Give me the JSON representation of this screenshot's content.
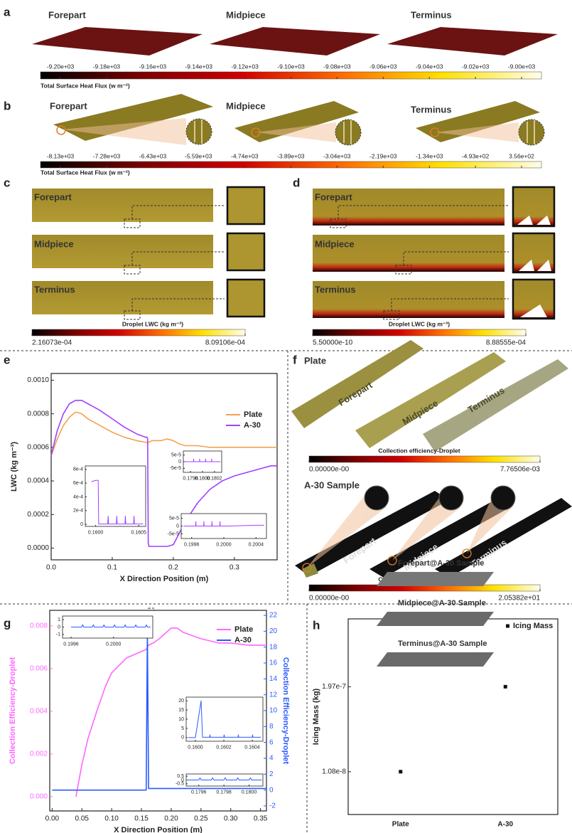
{
  "panels": {
    "a": {
      "label": "a",
      "names": [
        "Forepart",
        "Midpiece",
        "Terminus"
      ],
      "colorbar": {
        "title": "Total Surface Heat Flux (w m⁻²)",
        "lim": [
          -9200,
          -9000
        ],
        "ticks": [
          {
            "value": -9200,
            "label": "-9.20e+03"
          },
          {
            "value": -9180,
            "label": "-9.18e+03"
          },
          {
            "value": -9160,
            "label": "-9.16e+03"
          },
          {
            "value": -9140,
            "label": "-9.14e+03"
          },
          {
            "value": -9120,
            "label": "-9.12e+03"
          },
          {
            "value": -9100,
            "label": "-9.10e+03"
          },
          {
            "value": -9080,
            "label": "-9.08e+03"
          },
          {
            "value": -9060,
            "label": "-9.06e+03"
          },
          {
            "value": -9040,
            "label": "-9.04e+03"
          },
          {
            "value": -9020,
            "label": "-9.02e+03"
          },
          {
            "value": -9000,
            "label": "-9.00e+03"
          }
        ]
      }
    },
    "b": {
      "label": "b",
      "names": [
        "Forepart",
        "Midpiece",
        "Terminus"
      ],
      "colorbar": {
        "title": "Total Surface Heat Flux (w m⁻²)",
        "lim": [
          -8130,
          356
        ],
        "ticks": [
          {
            "value": -8130,
            "label": "-8.13e+03"
          },
          {
            "value": -7280,
            "label": "-7.28e+03"
          },
          {
            "value": -6430,
            "label": "-6.43e+03"
          },
          {
            "value": -5590,
            "label": "-5.59e+03"
          },
          {
            "value": -4740,
            "label": "-4.74e+03"
          },
          {
            "value": -3890,
            "label": "-3.89e+03"
          },
          {
            "value": -3040,
            "label": "-3.04e+03"
          },
          {
            "value": -2190,
            "label": "-2.19e+03"
          },
          {
            "value": -1340,
            "label": "-1.34e+03"
          },
          {
            "value": -493,
            "label": "-4.93e+02"
          },
          {
            "value": 356,
            "label": "3.56e+02"
          }
        ]
      }
    },
    "c": {
      "label": "c",
      "names": [
        "Forepart",
        "Midpiece",
        "Terminus"
      ],
      "colorbar": {
        "title": "Droplet LWC (kg m⁻³)",
        "lim": [
          0.000216073,
          0.000809106
        ],
        "ticks": [
          {
            "value": 0.000216073,
            "label": "2.16073e-04"
          },
          {
            "value": 0.000809106,
            "label": "8.09106e-04"
          }
        ]
      }
    },
    "d": {
      "label": "d",
      "names": [
        "Forepart",
        "Midpiece",
        "Terminus"
      ],
      "colorbar": {
        "title": "Droplet LWC (kg m⁻³)",
        "lim": [
          5.5e-10,
          0.000888555
        ],
        "ticks": [
          {
            "value": 5.5e-10,
            "label": "5.50000e-10"
          },
          {
            "value": 0.000888555,
            "label": "8.88555e-04"
          }
        ]
      }
    },
    "e": {
      "label": "e"
    },
    "f": {
      "label": "f",
      "plate_title": "Plate",
      "sample_title": "A-30 Sample",
      "plate_names": [
        "Forepart",
        "Midpiece",
        "Terminus"
      ],
      "sample_names": [
        "Forepart",
        "Midpiece",
        "Terminus"
      ],
      "plate_colorbar": {
        "title": "Collection efficiency-Droplet",
        "lim": [
          0,
          0.00776506
        ],
        "ticks": [
          {
            "value": 0,
            "label": "0.00000e-00"
          },
          {
            "value": 0.00776506,
            "label": "7.76506e-03"
          }
        ]
      },
      "sample_colorbar": {
        "title": "Collection efficiency-Droplet",
        "lim": [
          0,
          20.5382
        ],
        "ticks": [
          {
            "value": 0,
            "label": "0.00000e-00"
          },
          {
            "value": 20.5382,
            "label": "2.05382e+01"
          }
        ]
      }
    },
    "g": {
      "label": "g"
    },
    "h": {
      "label": "h"
    }
  },
  "chart_data": [
    {
      "type": "line",
      "xlabel": "X Direction Position (m)",
      "ylabel": "LWC (kg m⁻³)",
      "xlim": [
        0,
        0.37
      ],
      "xticks": [
        {
          "value": 0,
          "label": "0.0"
        },
        0.1,
        0.2,
        0.3
      ],
      "ylim": [
        -7e-05,
        0.00104
      ],
      "yticks": [
        {
          "value": 0,
          "label": "0.0000"
        },
        {
          "value": 0.0002,
          "label": "0.0002"
        },
        {
          "value": 0.0004,
          "label": "0.0004"
        },
        {
          "value": 0.0006,
          "label": "0.0006"
        },
        {
          "value": 0.0008,
          "label": "0.0008"
        },
        {
          "value": 0.001,
          "label": "0.0010"
        }
      ],
      "x": [
        0,
        0.01,
        0.02,
        0.03,
        0.04,
        0.05,
        0.06,
        0.08,
        0.1,
        0.12,
        0.14,
        0.155,
        0.157,
        0.158,
        0.159,
        0.16,
        0.165,
        0.17,
        0.18,
        0.19,
        0.2,
        0.21,
        0.22,
        0.24,
        0.26,
        0.28,
        0.3,
        0.32,
        0.34,
        0.36,
        0.37
      ],
      "series": [
        {
          "name": "Plate",
          "color": "#f5a050",
          "values": [
            0.00055,
            0.00065,
            0.00073,
            0.00078,
            0.00081,
            0.0008,
            0.00077,
            0.00073,
            0.00069,
            0.00066,
            0.00064,
            0.00063,
            0.00063,
            0.00063,
            0.00063,
            0.00063,
            0.00064,
            0.00064,
            0.00064,
            0.00065,
            0.00064,
            0.00062,
            0.00061,
            0.00061,
            0.0006,
            0.0006,
            0.0006,
            0.0006,
            0.0006,
            0.0006,
            0.0006
          ]
        },
        {
          "name": "A-30",
          "color": "#a040ff",
          "values": [
            0.00055,
            0.0007,
            0.0008,
            0.00086,
            0.00088,
            0.00088,
            0.00086,
            0.00082,
            0.00077,
            0.00072,
            0.00068,
            0.00066,
            0.00066,
            0.00065,
            3e-05,
            1e-05,
            1e-05,
            1e-05,
            1e-05,
            1e-05,
            2e-05,
            9e-05,
            0.00016,
            0.00027,
            0.00035,
            0.0004,
            0.00043,
            0.00045,
            0.00047,
            0.00049,
            0.00049
          ]
        }
      ]
    },
    {
      "type": "line",
      "xlim": [
        0.15988,
        0.16058
      ],
      "xticks": [
        {
          "value": 0.16,
          "label": "0.1600"
        },
        0.1605
      ],
      "ylim": [
        -3e-05,
        0.00085
      ],
      "yticks": [
        0,
        {
          "value": 0.0002,
          "label": "2e-4"
        },
        {
          "value": 0.0004,
          "label": "4e-4"
        },
        {
          "value": 0.0006,
          "label": "6e-4"
        },
        {
          "value": 0.0008,
          "label": "8e-4"
        }
      ],
      "x": [
        0.15995,
        0.16,
        0.16003,
        0.160035,
        0.16014,
        0.160145,
        0.16015,
        0.16024,
        0.160245,
        0.16025,
        0.16034,
        0.160345,
        0.16035,
        0.16044,
        0.160445,
        0.16045,
        0.16055
      ],
      "series": [
        {
          "color": "#a040ff",
          "values": [
            0.00062,
            0.00064,
            0.00064,
            5e-06,
            5e-06,
            0.00012,
            5e-06,
            5e-06,
            0.00012,
            5e-06,
            5e-06,
            0.00012,
            5e-06,
            5e-06,
            0.00012,
            5e-06,
            5e-06
          ]
        }
      ]
    },
    {
      "type": "line",
      "xlim": [
        0.17968,
        0.18032
      ],
      "xticks": [
        0.1798,
        {
          "value": 0.18,
          "label": "0.1800"
        },
        0.1802
      ],
      "ylim": [
        -8e-05,
        8e-05
      ],
      "yticks": [
        {
          "value": -5e-05,
          "label": "-5e-5"
        },
        0,
        {
          "value": 5e-05,
          "label": "5e-5"
        }
      ],
      "x": [
        0.1797,
        0.17985,
        0.179852,
        0.179855,
        0.17995,
        0.179952,
        0.179955,
        0.18005,
        0.180052,
        0.180055,
        0.18015,
        0.180152,
        0.180155,
        0.1803
      ],
      "series": [
        {
          "color": "#a040ff",
          "values": [
            0,
            0,
            2e-05,
            0,
            0,
            2e-05,
            0,
            0,
            2e-05,
            0,
            0,
            2e-05,
            0,
            0
          ]
        }
      ]
    },
    {
      "type": "line",
      "xlim": [
        0.19947,
        0.20053
      ],
      "xticks": [
        0.1996,
        {
          "value": 0.2,
          "label": "0.2000"
        },
        0.2004
      ],
      "ylim": [
        -8e-05,
        8e-05
      ],
      "yticks": [
        {
          "value": -5e-05,
          "label": "-5e-5"
        },
        0,
        {
          "value": 5e-05,
          "label": "5e-5"
        }
      ],
      "x": [
        0.1995,
        0.19965,
        0.199652,
        0.199655,
        0.19975,
        0.199752,
        0.199755,
        0.19985,
        0.199852,
        0.199855,
        0.19995,
        0.199952,
        0.199955,
        0.20005,
        0.2004,
        0.2005
      ],
      "series": [
        {
          "color": "#a040ff",
          "values": [
            0,
            0,
            3e-05,
            0,
            0,
            3e-05,
            0,
            0,
            3e-05,
            0,
            0,
            3e-05,
            0,
            0,
            5e-06,
            5e-06
          ]
        }
      ]
    },
    {
      "type": "line",
      "xlabel": "X Direction Position (m)",
      "ylabel": "Collection Efficiency-Droplet",
      "y2label": "Collection Efficiency-Droplet",
      "xlim": [
        -0.004,
        0.36
      ],
      "xticks": [
        {
          "value": 0,
          "label": "0.00"
        },
        0.05,
        {
          "value": 0.1,
          "label": "0.10"
        },
        0.15,
        {
          "value": 0.2,
          "label": "0.20"
        },
        0.25,
        {
          "value": 0.3,
          "label": "0.30"
        },
        0.35
      ],
      "ylim": [
        -0.00067,
        0.00873
      ],
      "yticks": [
        {
          "value": 0,
          "label": "0.000"
        },
        {
          "value": 0.002,
          "label": "0.002"
        },
        {
          "value": 0.004,
          "label": "0.004"
        },
        {
          "value": 0.006,
          "label": "0.006"
        },
        {
          "value": 0.008,
          "label": "0.008"
        }
      ],
      "y2lim": [
        -2.63,
        22.63
      ],
      "y2ticks": [
        -2,
        0,
        2,
        4,
        6,
        8,
        10,
        12,
        14,
        16,
        18,
        20,
        22
      ],
      "x": [
        0,
        0.02,
        0.04,
        0.05,
        0.06,
        0.075,
        0.09,
        0.1,
        0.125,
        0.15,
        0.158,
        0.16,
        0.162,
        0.17,
        0.18,
        0.2,
        0.21,
        0.22,
        0.25,
        0.28,
        0.3,
        0.33,
        0.36
      ],
      "series": [
        {
          "name": "Plate",
          "color": "#ff66ff",
          "values": [
            null,
            null,
            0,
            0.0015,
            0.0027,
            0.004,
            0.0052,
            0.0058,
            0.0065,
            0.0068,
            0.0069,
            0.007,
            0.0071,
            0.0072,
            0.0074,
            0.0079,
            0.0079,
            0.0077,
            0.0074,
            0.0072,
            0.0072,
            0.0071,
            0.0071
          ]
        },
        {
          "name": "A-30",
          "color": "#2a5bff",
          "axis": "y2",
          "values": [
            0,
            0,
            0,
            0,
            0,
            0,
            0,
            0,
            0,
            0,
            0,
            20,
            0.2,
            0.2,
            0.2,
            0.2,
            0.2,
            0.2,
            0.2,
            0.2,
            0.2,
            0.2,
            0.2
          ]
        }
      ]
    },
    {
      "type": "line",
      "xlim": [
        0.19952,
        0.20037
      ],
      "xticks": [
        0.1996,
        {
          "value": 0.2,
          "label": "0.2000"
        }
      ],
      "ylim": [
        -1.5,
        1.5
      ],
      "yticks": [
        -1,
        0,
        1
      ],
      "x": [
        0.1996,
        0.1997,
        0.19971,
        0.19972,
        0.1998,
        0.19981,
        0.19982,
        0.1999,
        0.19991,
        0.19992,
        0.2,
        0.20001,
        0.20002,
        0.2001,
        0.20011,
        0.20012,
        0.2002,
        0.20021,
        0.20022,
        0.2003,
        0.20031,
        0.20032,
        0.20035
      ],
      "series": [
        {
          "color": "#2a5bff",
          "values": [
            0,
            0,
            0.3,
            0,
            0,
            0.3,
            0,
            0,
            0.3,
            0,
            0,
            0.3,
            0,
            0,
            0.3,
            0,
            0,
            0.3,
            0,
            0,
            0.3,
            0,
            0
          ]
        }
      ]
    },
    {
      "type": "line",
      "xlim": [
        0.159935,
        0.160475
      ],
      "xticks": [
        {
          "value": 0.16,
          "label": "0.1600"
        },
        0.1602,
        0.1604
      ],
      "ylim": [
        -2,
        22
      ],
      "yticks": [
        0,
        5,
        10,
        15,
        20
      ],
      "x": [
        0.15995,
        0.16,
        0.16004,
        0.16005,
        0.1601,
        0.160102,
        0.160105,
        0.1602,
        0.160202,
        0.160205,
        0.1603,
        0.160302,
        0.160305,
        0.1604,
        0.160402,
        0.160405,
        0.16046
      ],
      "series": [
        {
          "color": "#2a5bff",
          "values": [
            0,
            0,
            20,
            0.2,
            0.2,
            1.5,
            0.2,
            0.2,
            1.5,
            0.2,
            0.2,
            1.5,
            0.2,
            0.2,
            1.5,
            0.2,
            0.2
          ]
        }
      ]
    },
    {
      "type": "line",
      "xlim": [
        0.1795,
        0.18011
      ],
      "xticks": [
        0.1796,
        0.1798,
        {
          "value": 0.18,
          "label": "0.1800"
        }
      ],
      "ylim": [
        -0.8,
        0.8
      ],
      "yticks": [
        -0.5,
        0,
        0.5
      ],
      "x": [
        0.1795,
        0.1796,
        0.17961,
        0.17962,
        0.1797,
        0.17971,
        0.17972,
        0.1798,
        0.17981,
        0.17982,
        0.1799,
        0.17991,
        0.17992,
        0.18,
        0.18001,
        0.18002,
        0.1801
      ],
      "series": [
        {
          "color": "#2a5bff",
          "values": [
            0,
            0,
            0.3,
            0,
            0,
            0.3,
            0,
            0,
            0.3,
            0,
            0,
            0.3,
            0,
            0,
            0.3,
            0,
            0
          ]
        }
      ]
    },
    {
      "type": "scatter",
      "ylabel": "Icing Mass (kg)",
      "log": true,
      "categories": [
        "Plate",
        "A-30"
      ],
      "ylim": [
        2.5e-09,
        2e-06
      ],
      "yticks": [
        {
          "value": 1.08e-08,
          "label": "1.08e-8"
        },
        {
          "value": 1.97e-07,
          "label": "1.97e-7"
        }
      ],
      "series": [
        {
          "name": "Icing Mass",
          "color": "#111111",
          "values": [
            1.08e-08,
            1.97e-07
          ]
        }
      ],
      "annotations": [
        "Forepart@A-30 Sample",
        "Midpiece@A-30 Sample",
        "Terminus@A-30 Sample"
      ]
    }
  ]
}
